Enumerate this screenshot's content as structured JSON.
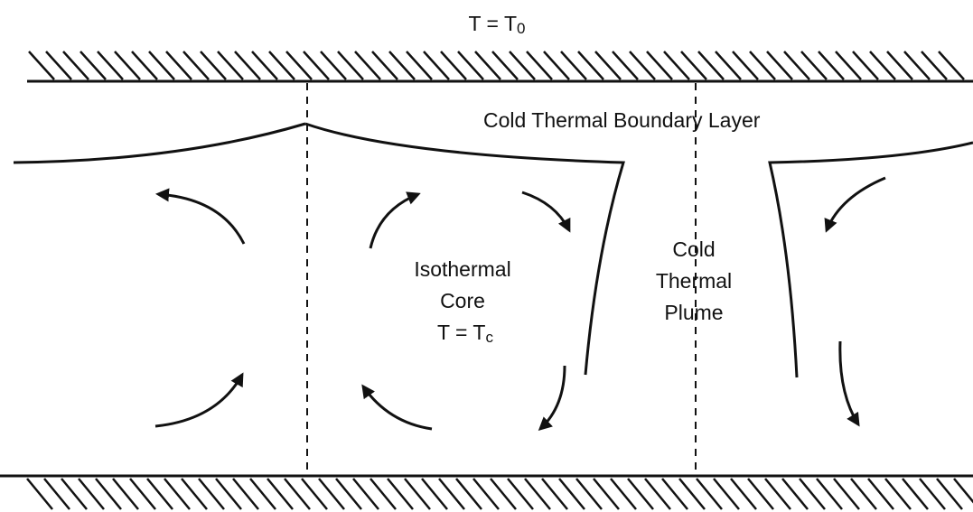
{
  "top_label": {
    "text": "T = T",
    "subscript": "0"
  },
  "boundary_layer_label": "Cold Thermal Boundary Layer",
  "core_label": {
    "lines": [
      "Isothermal",
      "Core"
    ],
    "temperature": {
      "text": "T = T",
      "subscript": "c"
    }
  },
  "plume_label": {
    "lines": [
      "Cold",
      "Thermal",
      "Plume"
    ]
  }
}
